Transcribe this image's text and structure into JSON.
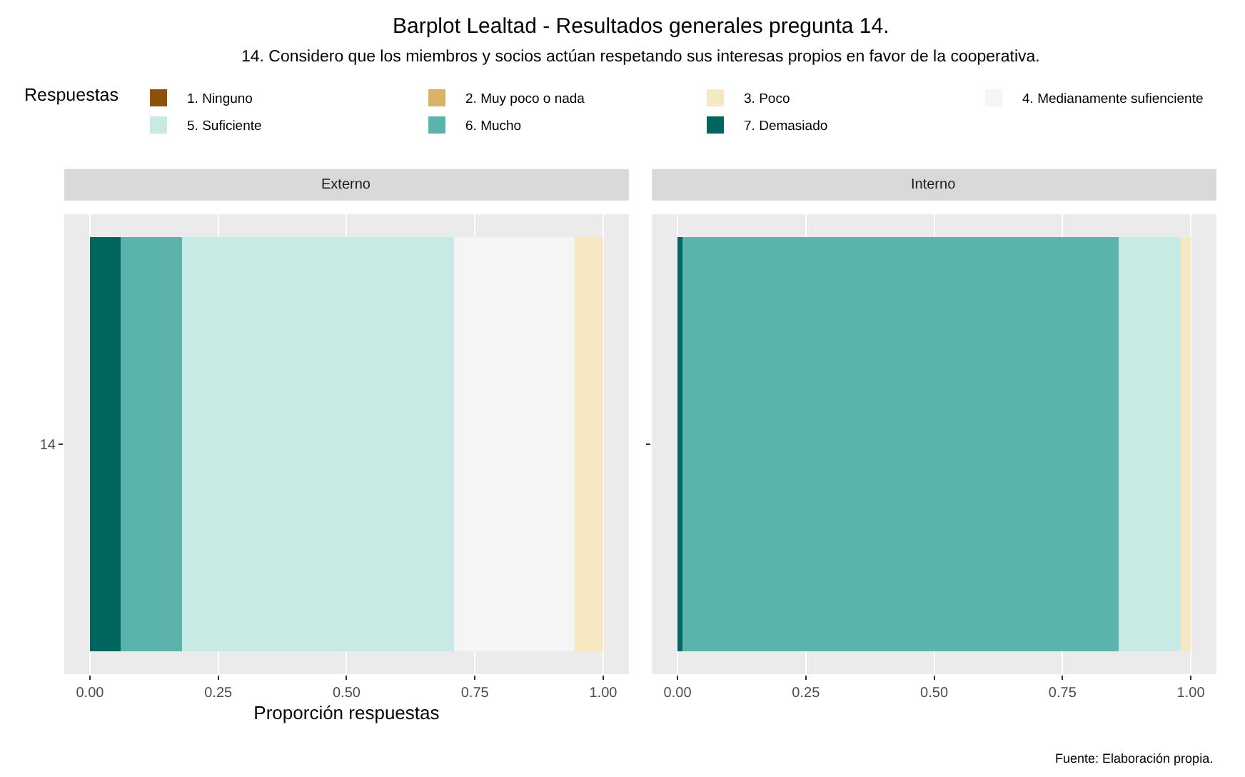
{
  "chart_data": [
    {
      "type": "bar",
      "orientation": "horizontal",
      "stacked": true,
      "title": "Externo",
      "annotations": [
        "Barplot Lealtad - Resultados generales pregunta 14.",
        "14. Considero que los miembros y socios actúan respetando sus interesas propios en favor de la cooperativa."
      ],
      "xlabel": "Proporción respuestas",
      "legend_title": "Respuestas",
      "legend": "top",
      "grid": true,
      "categories": [
        "14"
      ],
      "xlim": [
        -0.05,
        1.05
      ],
      "xticks": [
        {
          "value": 0,
          "label": "0.00"
        },
        {
          "value": 0.25,
          "label": "0.25"
        },
        {
          "value": 0.5,
          "label": "0.50"
        },
        {
          "value": 0.75,
          "label": "0.75"
        },
        {
          "value": 1,
          "label": "1.00"
        }
      ],
      "series": [
        {
          "name": "7. Demasiado",
          "color": "#01665e",
          "values": [
            0.06
          ]
        },
        {
          "name": "6. Mucho",
          "color": "#5ab4ac",
          "values": [
            0.12
          ]
        },
        {
          "name": "5. Suficiente",
          "color": "#c7eae5",
          "values": [
            0.53
          ]
        },
        {
          "name": "4. Medianamente sufienciente",
          "color": "#f5f5f5",
          "values": [
            0.235
          ]
        },
        {
          "name": "3. Poco",
          "color": "#f6e8c3",
          "values": [
            0.055
          ]
        },
        {
          "name": "2. Muy poco o nada",
          "color": "#d8b365",
          "values": [
            0
          ]
        },
        {
          "name": "1. Ninguno",
          "color": "#8c510a",
          "values": [
            0
          ]
        }
      ]
    },
    {
      "type": "bar",
      "orientation": "horizontal",
      "stacked": true,
      "title": "Interno",
      "annotations": [
        "Fuente: Elaboración propia."
      ],
      "grid": true,
      "tick_labels": "x",
      "categories": [
        null
      ],
      "xlim": [
        -0.05,
        1.05
      ],
      "xticks": [
        {
          "value": 0,
          "label": "0.00"
        },
        {
          "value": 0.25,
          "label": "0.25"
        },
        {
          "value": 0.5,
          "label": "0.50"
        },
        {
          "value": 0.75,
          "label": "0.75"
        },
        {
          "value": 1,
          "label": "1.00"
        }
      ],
      "series": [
        {
          "color": "#01665e",
          "values": [
            0.01
          ]
        },
        {
          "color": "#5ab4ac",
          "values": [
            0.85
          ]
        },
        {
          "color": "#c7eae5",
          "values": [
            0.12
          ]
        },
        {
          "color": "#f5f5f5",
          "values": [
            0
          ]
        },
        {
          "color": "#f6e8c3",
          "values": [
            0.02
          ]
        },
        {
          "color": "#d8b365",
          "values": [
            0
          ]
        },
        {
          "color": "#8c510a",
          "values": [
            0
          ]
        }
      ]
    }
  ]
}
